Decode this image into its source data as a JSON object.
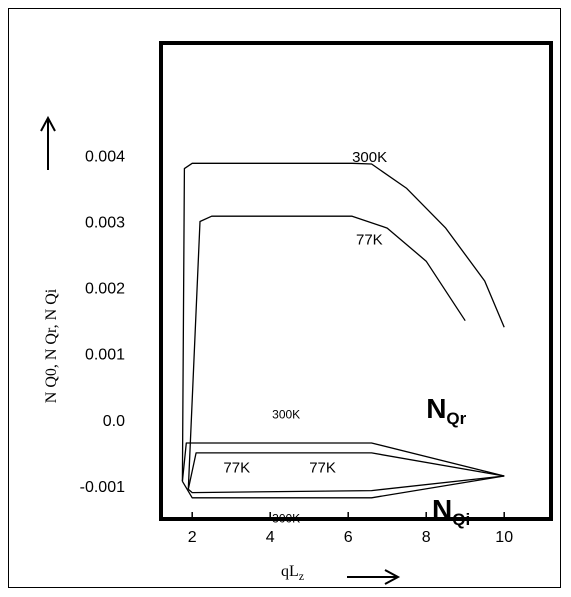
{
  "chart_data": {
    "type": "line",
    "title": "",
    "xlabel": "qL",
    "xlabel_sub": "z",
    "ylabel": "N Q0, N Qr, N Qi",
    "xlim": [
      1.2,
      11.2
    ],
    "ylim": [
      -0.0015,
      0.0057
    ],
    "x_ticks": [
      {
        "v": 2,
        "label": "2"
      },
      {
        "v": 4,
        "label": "4"
      },
      {
        "v": 6,
        "label": "6"
      },
      {
        "v": 8,
        "label": "8"
      },
      {
        "v": 10,
        "label": "10"
      }
    ],
    "y_ticks": [
      {
        "v": 0.004,
        "label": "0.004"
      },
      {
        "v": 0.003,
        "label": "0.003"
      },
      {
        "v": 0.002,
        "label": "0.002"
      },
      {
        "v": 0.001,
        "label": "0.001"
      },
      {
        "v": 0.0,
        "label": "0.0"
      },
      {
        "v": -0.001,
        "label": "-0.001"
      }
    ],
    "series": [
      {
        "name": "300K",
        "group": "NQ0",
        "x": [
          1.75,
          1.8,
          2.0,
          6.1,
          6.6,
          7.5,
          8.5,
          9.5,
          10.0
        ],
        "y": [
          -0.00093,
          0.0038,
          0.00388,
          0.00388,
          0.00387,
          0.0035,
          0.0029,
          0.0021,
          0.0014
        ]
      },
      {
        "name": "77K",
        "group": "NQ0",
        "x": [
          1.9,
          2.2,
          2.5,
          6.1,
          7.0,
          8.0,
          9.0
        ],
        "y": [
          -0.00105,
          0.003,
          0.00308,
          0.00308,
          0.0029,
          0.0024,
          0.0015
        ]
      },
      {
        "name": "300K",
        "group": "NQr",
        "x": [
          1.75,
          1.85,
          6.6,
          10.0
        ],
        "y": [
          -0.00093,
          -0.00035,
          -0.00035,
          -0.00085
        ]
      },
      {
        "name": "77K",
        "group": "NQr",
        "x": [
          1.9,
          2.1,
          6.6,
          10.0
        ],
        "y": [
          -0.00105,
          -0.0005,
          -0.0005,
          -0.00085
        ]
      },
      {
        "name": "77K",
        "group": "NQi",
        "x": [
          1.9,
          2.0,
          6.6,
          10.0
        ],
        "y": [
          -0.00105,
          -0.0011,
          -0.00107,
          -0.00085
        ]
      },
      {
        "name": "300K",
        "group": "NQi",
        "x": [
          1.75,
          2.0,
          6.6,
          10.0
        ],
        "y": [
          -0.00093,
          -0.00118,
          -0.00118,
          -0.00085
        ]
      }
    ],
    "annotations": [
      {
        "text": "300K",
        "x": 6.1,
        "y": 0.0039,
        "style": "normal"
      },
      {
        "text": "77K",
        "x": 6.2,
        "y": 0.00265,
        "style": "normal"
      },
      {
        "text": "300K",
        "x": 4.05,
        "y": 2e-05,
        "style": "small"
      },
      {
        "text": "77K",
        "x": 2.8,
        "y": -0.0008,
        "style": "normal"
      },
      {
        "text": "77K",
        "x": 5.0,
        "y": -0.0008,
        "style": "normal"
      },
      {
        "text": "300K",
        "x": 4.05,
        "y": -0.00155,
        "style": "small"
      }
    ],
    "big_labels": [
      {
        "main": "N",
        "sub": "Qr",
        "x": 8.0,
        "y": 3e-05
      },
      {
        "main": "N",
        "sub": "Qi",
        "x": 8.15,
        "y": -0.0015
      }
    ],
    "grid": false,
    "legend": "none"
  }
}
